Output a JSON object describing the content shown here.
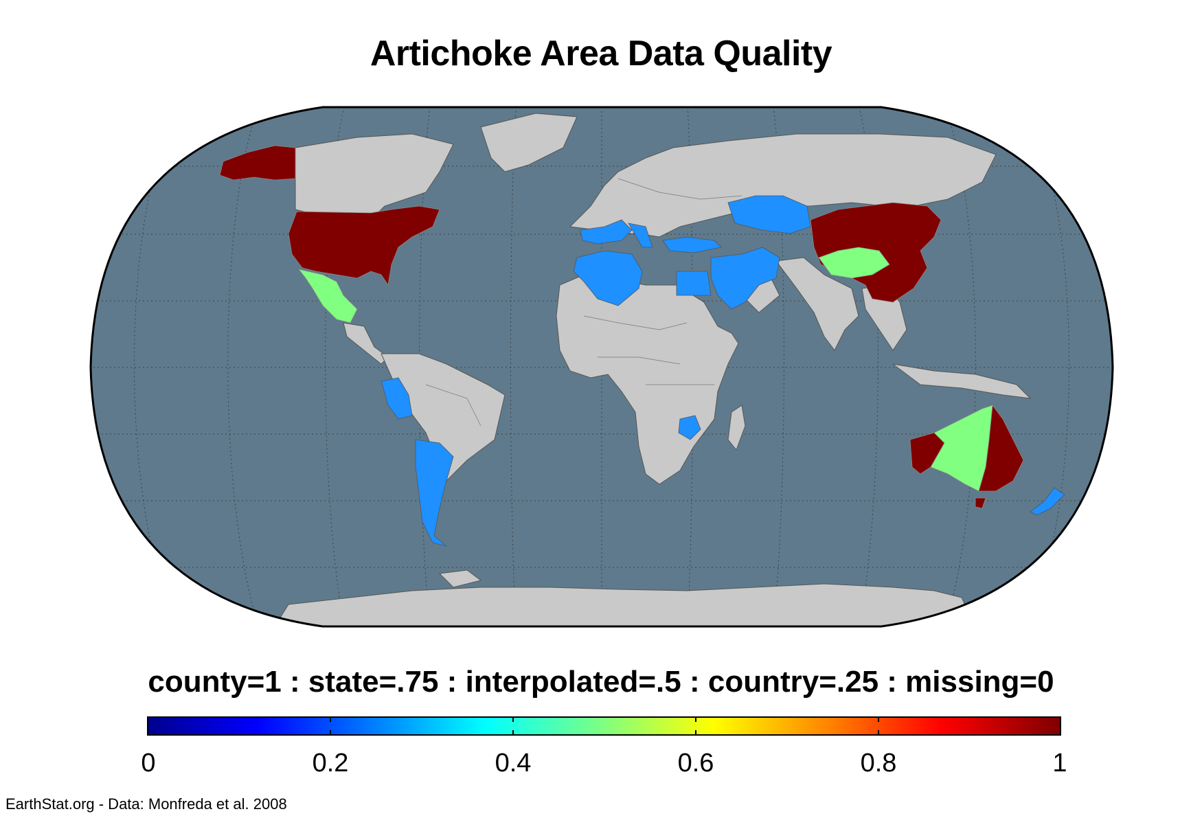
{
  "title": "Artichoke Area Data Quality",
  "legend_caption": "county=1 : state=.75 : interpolated=.5 : country=.25 : missing=0",
  "colorbar": {
    "ticks": [
      "0",
      "0.2",
      "0.4",
      "0.6",
      "0.8",
      "1"
    ],
    "colormap": "jet"
  },
  "credit": "EarthStat.org - Data: Monfreda et al. 2008",
  "colors": {
    "ocean": "#5f7a8c",
    "land_no_data": "#c9c9c9",
    "country_level": "#1e90ff",
    "interpolated": "#80ff80",
    "county_level": "#800000",
    "graticule": "#333333"
  },
  "map": {
    "projection": "Robinson",
    "regions": [
      {
        "name": "Alaska",
        "quality": "county"
      },
      {
        "name": "United States",
        "quality": "county"
      },
      {
        "name": "Mexico",
        "quality": "interpolated"
      },
      {
        "name": "Peru",
        "quality": "country"
      },
      {
        "name": "Chile",
        "quality": "country"
      },
      {
        "name": "Argentina",
        "quality": "country"
      },
      {
        "name": "Spain",
        "quality": "country"
      },
      {
        "name": "France",
        "quality": "country"
      },
      {
        "name": "Italy",
        "quality": "country"
      },
      {
        "name": "Greece",
        "quality": "country"
      },
      {
        "name": "Morocco",
        "quality": "country"
      },
      {
        "name": "Algeria",
        "quality": "country"
      },
      {
        "name": "Tunisia",
        "quality": "country"
      },
      {
        "name": "Egypt",
        "quality": "country"
      },
      {
        "name": "Turkey",
        "quality": "country"
      },
      {
        "name": "Iran",
        "quality": "country"
      },
      {
        "name": "Saudi Arabia",
        "quality": "country"
      },
      {
        "name": "Kazakhstan",
        "quality": "country"
      },
      {
        "name": "Zimbabwe",
        "quality": "country"
      },
      {
        "name": "China",
        "quality": "county"
      },
      {
        "name": "Western China",
        "quality": "interpolated"
      },
      {
        "name": "Australia interior",
        "quality": "interpolated"
      },
      {
        "name": "Australia south-west",
        "quality": "county"
      },
      {
        "name": "Australia east",
        "quality": "county"
      },
      {
        "name": "New Zealand",
        "quality": "country"
      }
    ]
  }
}
